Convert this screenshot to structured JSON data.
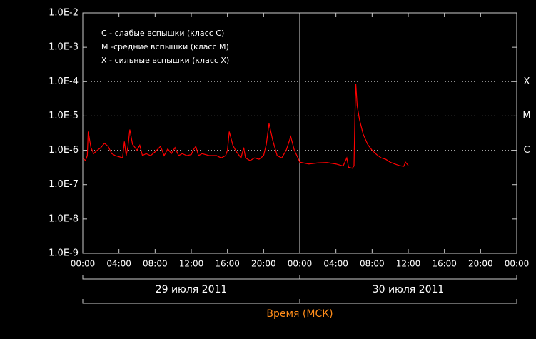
{
  "chart_data": {
    "type": "line",
    "legend_lines": [
      "C - слабые вспышки (класс C)",
      "M -средние вспышки (класс M)",
      "X - сильные вспышки (класс X)"
    ],
    "x_label": "Время (МСК)",
    "log_y": true,
    "ylim": [
      1e-09,
      0.01
    ],
    "yticks": [
      {
        "value": 1e-09,
        "label": "1.0E-9"
      },
      {
        "value": 1e-08,
        "label": "1.0E-8"
      },
      {
        "value": 1e-07,
        "label": "1.0E-7"
      },
      {
        "value": 1e-06,
        "label": "1.0E-6"
      },
      {
        "value": 1e-05,
        "label": "1.0E-5"
      },
      {
        "value": 0.0001,
        "label": "1.0E-4"
      },
      {
        "value": 0.001,
        "label": "1.0E-3"
      },
      {
        "value": 0.01,
        "label": "1.0E-2"
      }
    ],
    "class_levels": [
      {
        "value": 0.0001,
        "label": "X"
      },
      {
        "value": 1e-05,
        "label": "M"
      },
      {
        "value": 1e-06,
        "label": "C"
      }
    ],
    "xlim": [
      0,
      48
    ],
    "xticks": [
      {
        "value": 0,
        "label": "00:00"
      },
      {
        "value": 4,
        "label": "04:00"
      },
      {
        "value": 8,
        "label": "08:00"
      },
      {
        "value": 12,
        "label": "12:00"
      },
      {
        "value": 16,
        "label": "16:00"
      },
      {
        "value": 20,
        "label": "20:00"
      },
      {
        "value": 24,
        "label": "00:00"
      },
      {
        "value": 28,
        "label": "04:00"
      },
      {
        "value": 32,
        "label": "08:00"
      },
      {
        "value": 36,
        "label": "12:00"
      },
      {
        "value": 40,
        "label": "16:00"
      },
      {
        "value": 44,
        "label": "20:00"
      },
      {
        "value": 48,
        "label": "00:00"
      }
    ],
    "days": [
      {
        "label": "29 июля 2011",
        "range": [
          0,
          24
        ]
      },
      {
        "label": "30 июля 2011",
        "range": [
          24,
          48
        ]
      }
    ],
    "series": [
      {
        "color": "#ff0000",
        "x": [
          0,
          0.3,
          0.5,
          0.6,
          0.9,
          1.2,
          1.6,
          2.0,
          2.4,
          2.8,
          3.2,
          3.6,
          4.0,
          4.4,
          4.6,
          4.8,
          5.0,
          5.2,
          5.5,
          6.0,
          6.3,
          6.6,
          7.0,
          7.5,
          8.0,
          8.6,
          9.0,
          9.4,
          9.8,
          10.2,
          10.6,
          11.0,
          11.5,
          12.0,
          12.2,
          12.5,
          12.8,
          13.2,
          14.0,
          14.8,
          15.3,
          15.8,
          16.0,
          16.2,
          16.6,
          17.0,
          17.5,
          17.8,
          18.0,
          18.5,
          19.0,
          19.5,
          20.0,
          20.3,
          20.6,
          21.0,
          21.5,
          22.0,
          22.5,
          23.0,
          23.4,
          23.8,
          24,
          25,
          26,
          27,
          28,
          28.8,
          29.2,
          29.4,
          29.8,
          30.0,
          30.1,
          30.2,
          30.35,
          30.6,
          31,
          31.5,
          32,
          32.5,
          33,
          33.5,
          34,
          34.5,
          35,
          35.5,
          35.7,
          36
        ],
        "values": [
          6e-07,
          5e-07,
          7e-07,
          3.5e-06,
          1.2e-06,
          8e-07,
          1e-06,
          1.2e-06,
          1.6e-06,
          1.3e-06,
          8e-07,
          7e-07,
          6.5e-07,
          6e-07,
          1.8e-06,
          7e-07,
          1.3e-06,
          4e-06,
          1.5e-06,
          1e-06,
          1.4e-06,
          7e-07,
          8e-07,
          7e-07,
          9e-07,
          1.3e-06,
          7e-07,
          1.1e-06,
          8e-07,
          1.2e-06,
          7e-07,
          8e-07,
          7e-07,
          7.5e-07,
          1e-06,
          1.3e-06,
          7e-07,
          8e-07,
          7e-07,
          7e-07,
          6e-07,
          7e-07,
          1e-06,
          3.5e-06,
          1.4e-06,
          9e-07,
          6e-07,
          1.2e-06,
          6e-07,
          5e-07,
          6e-07,
          5.5e-07,
          7e-07,
          1.5e-06,
          6e-06,
          2e-06,
          7e-07,
          6e-07,
          1e-06,
          2.5e-06,
          1e-06,
          6e-07,
          4.5e-07,
          4e-07,
          4.3e-07,
          4.4e-07,
          4e-07,
          3.5e-07,
          6e-07,
          3.2e-07,
          3e-07,
          3.5e-07,
          1e-05,
          8.5e-05,
          2e-05,
          8e-06,
          3e-06,
          1.5e-06,
          1e-06,
          7.5e-07,
          6e-07,
          5.5e-07,
          4.5e-07,
          4e-07,
          3.6e-07,
          3.4e-07,
          4.5e-07,
          3.6e-07
        ]
      }
    ]
  }
}
